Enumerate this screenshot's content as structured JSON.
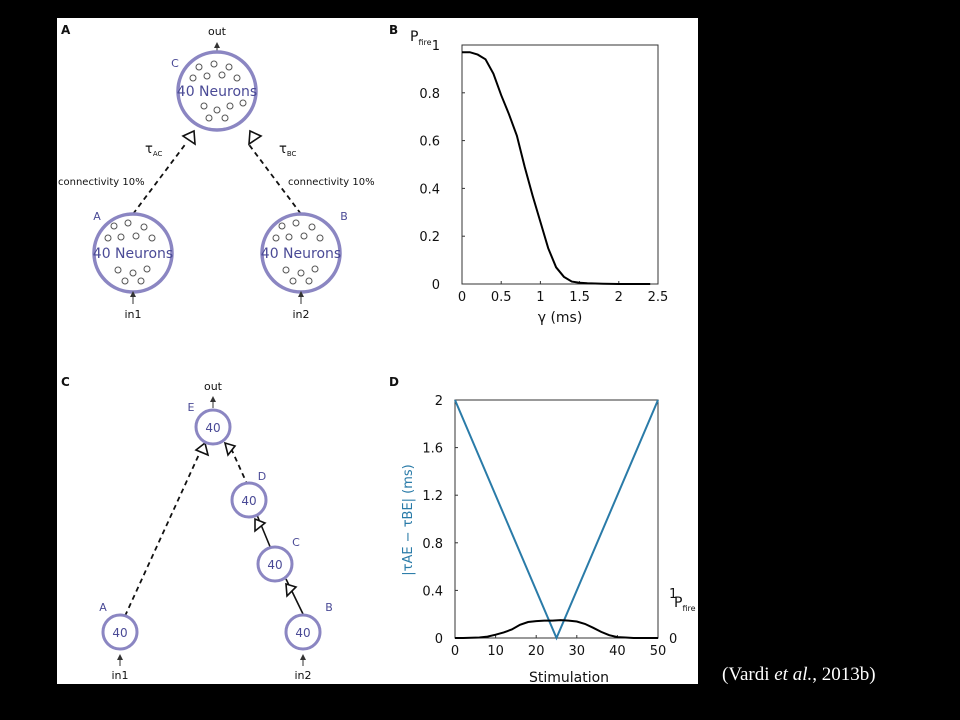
{
  "panels": {
    "a": {
      "letter": "A",
      "out": "out",
      "nodeC": {
        "letter": "C",
        "text": "40 Neurons"
      },
      "nodeA": {
        "letter": "A",
        "text": "40 Neurons",
        "input": "in1"
      },
      "nodeB": {
        "letter": "B",
        "text": "40 Neurons",
        "input": "in2"
      },
      "tau_ac": {
        "sym": "τ",
        "sub": "AC"
      },
      "tau_bc": {
        "sym": "τ",
        "sub": "BC"
      },
      "conn_left": "connectivity 10%",
      "conn_right": "connectivity 10%"
    },
    "c": {
      "letter": "C",
      "out": "out",
      "nodes": {
        "E": {
          "letter": "E",
          "text": "40"
        },
        "D": {
          "letter": "D",
          "text": "40"
        },
        "C": {
          "letter": "C",
          "text": "40"
        },
        "A": {
          "letter": "A",
          "text": "40",
          "input": "in1"
        },
        "B": {
          "letter": "B",
          "text": "40",
          "input": "in2"
        }
      }
    },
    "b": {
      "letter": "B",
      "ylabel": "P",
      "ylabel_sub": "fire",
      "xlabel": "γ (ms)"
    },
    "d": {
      "letter": "D",
      "xlabel": "Stimulation",
      "ylabel_left": "|τAE − τBE| (ms)",
      "ylabel_right": "P",
      "ylabel_right_sub": "fire",
      "right_ticks": [
        "1",
        "0"
      ]
    }
  },
  "citation": {
    "pre": "(Vardi ",
    "em": "et al.",
    "post": ", 2013b)"
  },
  "colors": {
    "node": "#8b86c2",
    "node_text": "#4a4a96",
    "teal": "#2a7ba8",
    "line": "#000000"
  },
  "chart_data": [
    {
      "type": "line",
      "xlabel": "γ (ms)",
      "ylabel": "Pfire",
      "xlim": [
        0,
        2.5
      ],
      "ylim": [
        0,
        1
      ],
      "xticks": [
        "0",
        "0.5",
        "1",
        "1.5",
        "2",
        "2.5"
      ],
      "yticks": [
        "0",
        "0.2",
        "0.4",
        "0.6",
        "0.8",
        "1"
      ],
      "series": [
        {
          "x": [
            0,
            0.1,
            0.2,
            0.3,
            0.4,
            0.5,
            0.6,
            0.7,
            0.8,
            0.9,
            1.0,
            1.1,
            1.2,
            1.3,
            1.4,
            1.5,
            1.6,
            1.8,
            2.0,
            2.2,
            2.4
          ],
          "values": [
            0.97,
            0.97,
            0.96,
            0.94,
            0.88,
            0.79,
            0.71,
            0.62,
            0.49,
            0.37,
            0.26,
            0.15,
            0.07,
            0.03,
            0.01,
            0.005,
            0.003,
            0.001,
            0,
            0,
            0
          ]
        }
      ]
    },
    {
      "type": "line",
      "xlabel": "Stimulation",
      "ylabel": "|τAE − τBE| (ms)",
      "ylabel_right": "Pfire",
      "xlim": [
        0,
        50
      ],
      "ylim": [
        0,
        2
      ],
      "ylim_right": [
        0,
        1
      ],
      "xticks": [
        "0",
        "10",
        "20",
        "30",
        "40",
        "50"
      ],
      "yticks": [
        "0",
        "0.4",
        "0.8",
        "1.2",
        "1.6",
        "2"
      ],
      "series": [
        {
          "axis": "left",
          "color": "#2a7ba8",
          "x": [
            0,
            25,
            50
          ],
          "values": [
            2,
            0,
            2
          ]
        },
        {
          "axis": "right",
          "color": "#000000",
          "x": [
            0,
            2,
            4,
            6,
            8,
            10,
            12,
            14,
            16,
            18,
            20,
            22,
            24,
            26,
            28,
            30,
            32,
            34,
            36,
            38,
            40,
            42,
            44,
            46,
            48,
            50
          ],
          "values": [
            0,
            0,
            0.005,
            0.01,
            0.03,
            0.07,
            0.12,
            0.18,
            0.28,
            0.34,
            0.36,
            0.37,
            0.37,
            0.38,
            0.37,
            0.35,
            0.3,
            0.22,
            0.13,
            0.06,
            0.02,
            0.01,
            0,
            0,
            0,
            0
          ]
        }
      ]
    }
  ]
}
